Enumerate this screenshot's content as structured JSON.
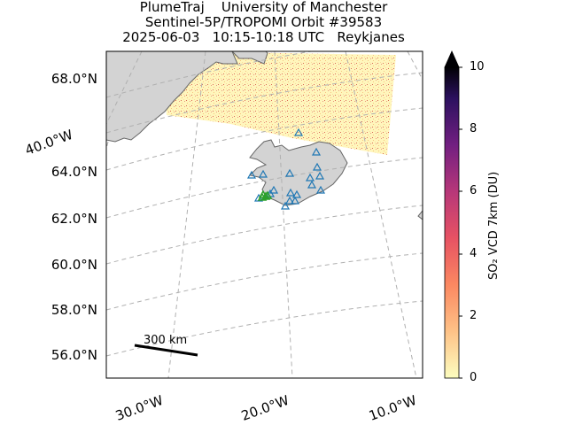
{
  "title": {
    "line1": "PlumeTraj    University of Manchester",
    "line2": "Sentinel-5P/TROPOMI Orbit #39583",
    "line3": "2025-06-03   10:15-10:18 UTC   Reykjanes"
  },
  "map": {
    "lat_labels": [
      "68.0°N",
      "64.0°N",
      "62.0°N",
      "60.0°N",
      "58.0°N",
      "56.0°N"
    ],
    "lon_labels": [
      "40.0°W",
      "30.0°W",
      "20.0°W",
      "10.0°W"
    ],
    "land_color": "#d3d3d3",
    "grid": true,
    "scale_bar_label": "300 km"
  },
  "colorbar": {
    "label": "SO₂ VCD 7km (DU)",
    "ticks": [
      "0",
      "2",
      "4",
      "6",
      "8",
      "10"
    ],
    "min": 0,
    "max": 10,
    "extend": "max",
    "colormap": "magma_r"
  },
  "markers": {
    "volcanoes_color": "#1f77b4",
    "active_color": "#2ca02c",
    "volcano_shape": "triangle-outline"
  }
}
